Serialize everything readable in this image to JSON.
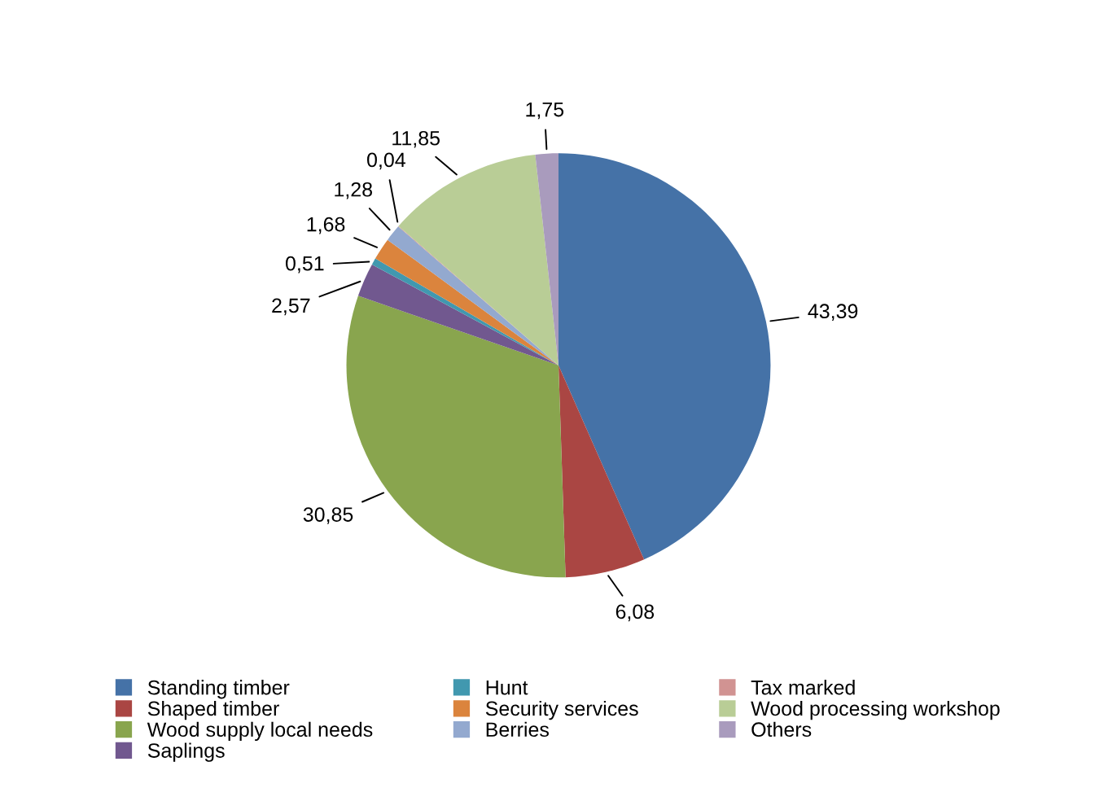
{
  "chart_data": {
    "type": "pie",
    "categories": [
      "Standing timber",
      "Shaped timber",
      "Wood supply local needs",
      "Saplings",
      "Hunt",
      "Security services",
      "Berries",
      "Tax marked",
      "Wood processing workshop",
      "Others"
    ],
    "values": [
      43.39,
      6.08,
      30.85,
      2.57,
      0.51,
      1.68,
      1.28,
      0.04,
      11.85,
      1.75
    ],
    "value_labels": [
      "43,39",
      "6,08",
      "30,85",
      "2,57",
      "0,51",
      "1,68",
      "1,28",
      "0,04",
      "11,85",
      "1,75"
    ],
    "colors": [
      "#4572a7",
      "#aa4643",
      "#89a54e",
      "#71588f",
      "#4198af",
      "#db843d",
      "#93a9cf",
      "#d19392",
      "#b9cd96",
      "#a99bbd"
    ],
    "legend": "bottom"
  }
}
